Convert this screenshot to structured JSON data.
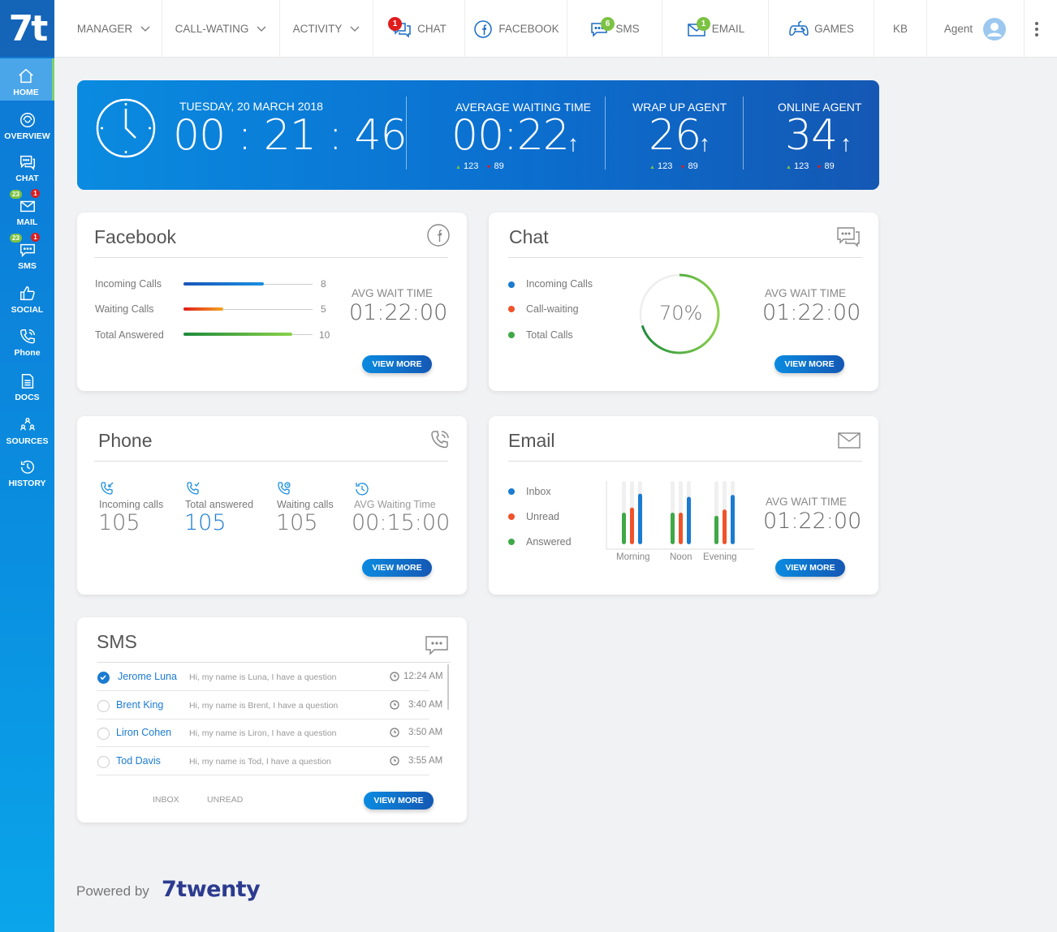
{
  "brand": {
    "logo": "7t",
    "powered_by": "Powered by",
    "powered_logo": "7twenty"
  },
  "sidebar": {
    "items": [
      {
        "label": "HOME",
        "icon": "home-icon"
      },
      {
        "label": "OVERVIEW",
        "icon": "overview-icon"
      },
      {
        "label": "CHAT",
        "icon": "chat-icon"
      },
      {
        "label": "MAIL",
        "icon": "mail-icon",
        "badge_green": "23",
        "badge_red": "1"
      },
      {
        "label": "SMS",
        "icon": "sms-icon",
        "badge_green": "23",
        "badge_red": "1"
      },
      {
        "label": "SOCIAL",
        "icon": "thumbs-up-icon"
      },
      {
        "label": "Phone",
        "icon": "phone-icon"
      },
      {
        "label": "DOCS",
        "icon": "document-icon"
      },
      {
        "label": "SOURCES",
        "icon": "sources-icon"
      },
      {
        "label": "HISTORY",
        "icon": "history-icon"
      }
    ]
  },
  "topnav": {
    "manager": "MANAGER",
    "call_waiting": "CALL-WATING",
    "activity": "ACTIVITY",
    "chat": "CHAT",
    "chat_badge": "1",
    "facebook": "FACEBOOK",
    "sms": "SMS",
    "sms_badge": "6",
    "email": "EMAIL",
    "email_badge": "1",
    "games": "GAMES",
    "kb": "KB",
    "agent": "Agent"
  },
  "banner": {
    "date": "TUESDAY, 20 MARCH 2018",
    "time": "00 : 21 : 46",
    "avg_wait_label": "AVERAGE WAITING TIME",
    "avg_wait_value": "00:22",
    "wrap_label": "WRAP UP AGENT",
    "wrap_value": "26",
    "online_label": "ONLINE AGENT",
    "online_value": "34",
    "up_count": "123",
    "down_count": "89",
    "arrow": "↑",
    "tri_up": "▲",
    "tri_down": "▼"
  },
  "facebook": {
    "title": "Facebook",
    "rows": [
      {
        "label": "Incoming Calls",
        "value": "8",
        "fill": 0.62,
        "gradient": [
          "#1a56b8",
          "#1a8fe0"
        ]
      },
      {
        "label": "Waiting Calls",
        "value": "5",
        "fill": 0.31,
        "gradient": [
          "#e01c1c",
          "#f5a623"
        ]
      },
      {
        "label": "Total Answered",
        "value": "10",
        "fill": 0.84,
        "gradient": [
          "#1e8a3c",
          "#8bd14a"
        ]
      }
    ],
    "avg_label": "AVG WAIT TIME",
    "avg_value": "01:22:00",
    "button": "VIEW MORE"
  },
  "chat": {
    "title": "Chat",
    "legend": [
      "Incoming Calls",
      "Call-waiting",
      "Total Calls"
    ],
    "legend_colors": [
      "#1a7bd1",
      "#f0522a",
      "#3fa847"
    ],
    "gauge_label": "70%",
    "gauge_value": 0.7,
    "avg_label": "AVG WAIT TIME",
    "avg_value": "01:22:00",
    "button": "VIEW MORE"
  },
  "phone": {
    "title": "Phone",
    "stats": [
      {
        "label": "Incoming calls",
        "value": "105",
        "icon": "incoming-call-icon"
      },
      {
        "label": "Total answered",
        "value": "105",
        "icon": "answered-call-icon"
      },
      {
        "label": "Waiting calls",
        "value": "105",
        "icon": "waiting-call-icon"
      },
      {
        "label": "AVG Waiting Time",
        "value": "00:15:00",
        "icon": "history-icon"
      }
    ],
    "button": "VIEW MORE"
  },
  "email": {
    "title": "Email",
    "legend": [
      "Inbox",
      "Unread",
      "Answered"
    ],
    "legend_colors": [
      "#1a7bd1",
      "#f0522a",
      "#3fa847"
    ],
    "categories": [
      "Morning",
      "Noon",
      "Evening"
    ],
    "avg_label": "AVG WAIT TIME",
    "avg_value": "01:22:00",
    "button": "VIEW MORE"
  },
  "chart_data": {
    "type": "bar",
    "categories": [
      "Morning",
      "Noon",
      "Evening"
    ],
    "series": [
      {
        "name": "Answered",
        "values": [
          0.5,
          0.5,
          0.45
        ]
      },
      {
        "name": "Unread",
        "values": [
          0.58,
          0.5,
          0.55
        ]
      },
      {
        "name": "Inbox",
        "values": [
          0.8,
          0.75,
          0.78
        ]
      }
    ],
    "colors": [
      "#3fa847",
      "#f0522a",
      "#1a7bd1"
    ],
    "ylim": [
      0,
      1
    ]
  },
  "sms": {
    "title": "SMS",
    "rows": [
      {
        "name": "Jerome Luna",
        "message": "Hi, my name is Luna, I have a question",
        "time": "12:24 AM",
        "checked": true
      },
      {
        "name": "Brent King",
        "message": "Hi, my name is Brent, I have a question",
        "time": "3:40 AM",
        "checked": false
      },
      {
        "name": "Liron Cohen",
        "message": "Hi, my name is Liron, I have a question",
        "time": "3:50 AM",
        "checked": false
      },
      {
        "name": "Tod Davis",
        "message": "Hi, my name is Tod, I have a question",
        "time": "3:55 AM",
        "checked": false
      }
    ],
    "tab_inbox": "INBOX",
    "tab_unread": "UNREAD",
    "button": "VIEW MORE"
  },
  "colors": {
    "primary": "#0b6fcf",
    "accent_green": "#7cc242",
    "alert_red": "#e01c1c"
  }
}
